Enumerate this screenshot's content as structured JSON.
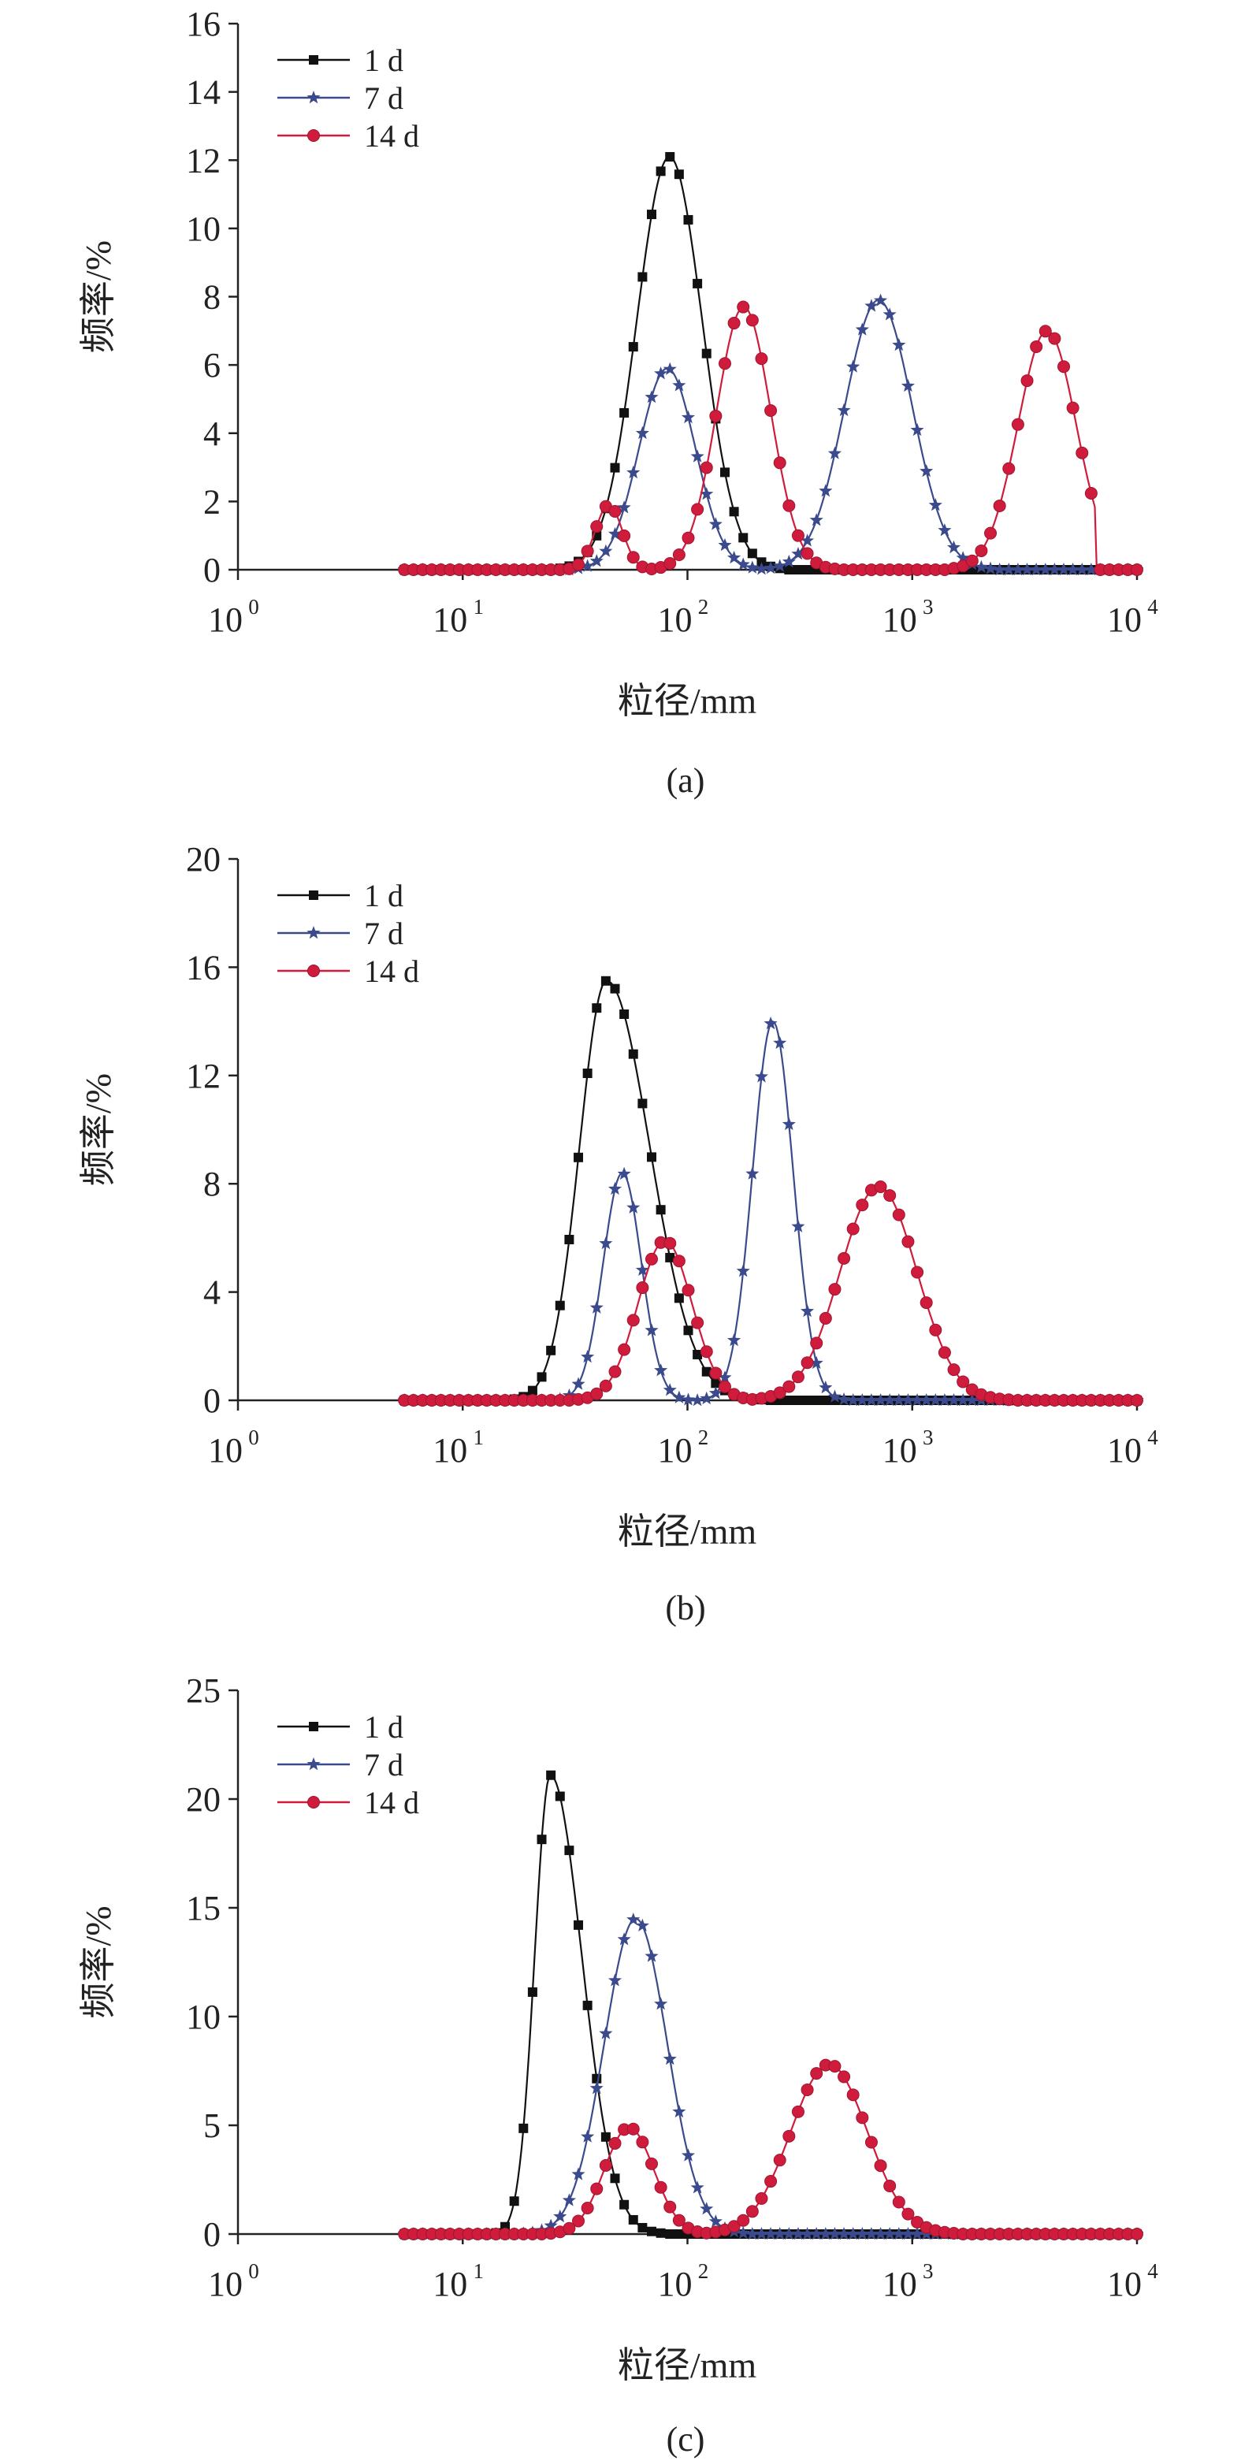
{
  "chart_data": [
    {
      "type": "line",
      "caption": "(a)",
      "xlabel": "粒径/mm",
      "ylabel": "频率/%",
      "xscale": "log",
      "xlim": [
        1,
        10000
      ],
      "x_tick_labels": [
        {
          "base": "10",
          "exp": "0"
        },
        {
          "base": "10",
          "exp": "1"
        },
        {
          "base": "10",
          "exp": "2"
        },
        {
          "base": "10",
          "exp": "3"
        },
        {
          "base": "10",
          "exp": "4"
        }
      ],
      "ylim": [
        0,
        16
      ],
      "y_ticks": [
        "0",
        "2",
        "4",
        "6",
        "8",
        "10",
        "12",
        "14",
        "16"
      ],
      "legend_position": "top-left",
      "series": [
        {
          "name": "1 d",
          "color": "#111111",
          "marker": "square",
          "peak": 12.1,
          "mu": 1.92,
          "sigma": 0.145,
          "min": 5.5,
          "max": 10000
        },
        {
          "name": "7 d",
          "color": "#3b4a8c",
          "marker": "star",
          "peaks": [
            {
              "amp": 5.9,
              "mu": 1.91,
              "sigma": 0.125
            },
            {
              "amp": 7.9,
              "mu": 2.85,
              "sigma": 0.15
            }
          ],
          "min": 5.5,
          "max": 10000
        },
        {
          "name": "14 d",
          "color": "#d01c3c",
          "marker": "circle",
          "peaks": [
            {
              "amp": 1.9,
              "mu": 1.65,
              "sigma": 0.06
            },
            {
              "amp": 7.7,
              "mu": 2.25,
              "sigma": 0.12
            },
            {
              "amp": 7.0,
              "mu": 3.6,
              "sigma": 0.13
            }
          ],
          "cutoff": 6500,
          "min": 5.5,
          "max": 10000
        }
      ]
    },
    {
      "type": "line",
      "caption": "(b)",
      "xlabel": "粒径/mm",
      "ylabel": "频率/%",
      "xscale": "log",
      "xlim": [
        1,
        10000
      ],
      "x_tick_labels": [
        {
          "base": "10",
          "exp": "0"
        },
        {
          "base": "10",
          "exp": "1"
        },
        {
          "base": "10",
          "exp": "2"
        },
        {
          "base": "10",
          "exp": "3"
        },
        {
          "base": "10",
          "exp": "4"
        }
      ],
      "ylim": [
        0,
        20
      ],
      "y_ticks": [
        "0",
        "4",
        "8",
        "12",
        "16",
        "20"
      ],
      "legend_position": "top-left",
      "series": [
        {
          "name": "1 d",
          "color": "#111111",
          "marker": "square",
          "peak": 15.5,
          "mu": 1.64,
          "sigma": 0.12,
          "skew_right": 1.6,
          "min": 5.5,
          "max": 10000
        },
        {
          "name": "7 d",
          "color": "#3b4a8c",
          "marker": "star",
          "peaks": [
            {
              "amp": 8.4,
              "mu": 1.71,
              "sigma": 0.085
            },
            {
              "amp": 14.0,
              "mu": 2.38,
              "sigma": 0.09
            }
          ],
          "min": 5.5,
          "max": 10000
        },
        {
          "name": "14 d",
          "color": "#d01c3c",
          "marker": "circle",
          "peaks": [
            {
              "amp": 5.9,
              "mu": 1.9,
              "sigma": 0.12
            },
            {
              "amp": 7.9,
              "mu": 2.85,
              "sigma": 0.17
            }
          ],
          "min": 5.5,
          "max": 10000
        }
      ]
    },
    {
      "type": "line",
      "caption": "(c)",
      "xlabel": "粒径/mm",
      "ylabel": "频率/%",
      "xscale": "log",
      "xlim": [
        1,
        10000
      ],
      "x_tick_labels": [
        {
          "base": "10",
          "exp": "0"
        },
        {
          "base": "10",
          "exp": "1"
        },
        {
          "base": "10",
          "exp": "2"
        },
        {
          "base": "10",
          "exp": "3"
        },
        {
          "base": "10",
          "exp": "4"
        }
      ],
      "ylim": [
        0,
        25
      ],
      "y_ticks": [
        "0",
        "5",
        "10",
        "15",
        "20",
        "25"
      ],
      "legend_position": "top-left",
      "series": [
        {
          "name": "1 d",
          "color": "#111111",
          "marker": "square",
          "peak": 21.1,
          "mu": 1.39,
          "sigma": 0.07,
          "skew_right": 2.0,
          "min": 5.5,
          "max": 10000
        },
        {
          "name": "7 d",
          "color": "#3b4a8c",
          "marker": "star",
          "peak": 14.5,
          "mu": 1.77,
          "sigma": 0.14,
          "min": 5.5,
          "max": 10000
        },
        {
          "name": "14 d",
          "color": "#d01c3c",
          "marker": "circle",
          "peaks": [
            {
              "amp": 4.9,
              "mu": 1.74,
              "sigma": 0.11
            },
            {
              "amp": 7.8,
              "mu": 2.63,
              "sigma": 0.17
            }
          ],
          "min": 5.5,
          "max": 10000
        }
      ]
    }
  ]
}
